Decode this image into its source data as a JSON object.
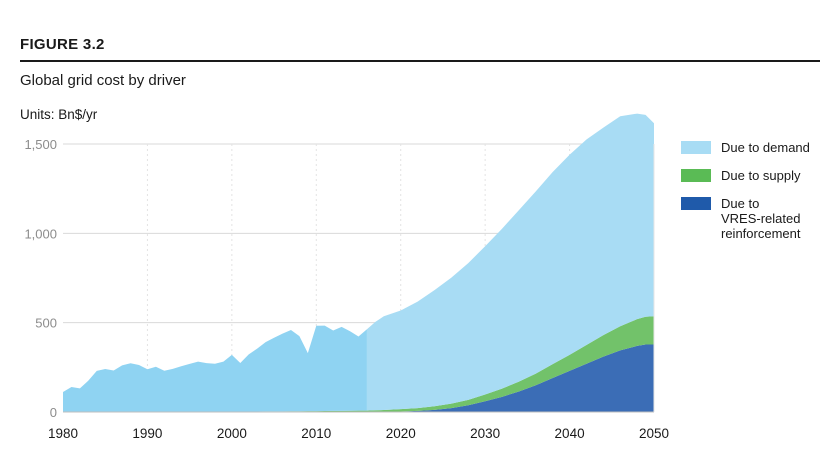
{
  "figure": {
    "label": "FIGURE 3.2",
    "title": "Global grid cost by driver",
    "units": "Units: Bn$/yr"
  },
  "colors": {
    "demand": "#a8dcf4",
    "demand_historic": "#8fd3f2",
    "supply": "#72c26a",
    "vres": "#3b6db6",
    "grid": "#d9d9d9",
    "axis_text": "#8c8c8c"
  },
  "legend": [
    {
      "name": "Due to demand",
      "color": "#a8dcf4"
    },
    {
      "name": "Due to supply",
      "color": "#5abb55"
    },
    {
      "name": "Due to\nVRES-related\nreinforcement",
      "color": "#1f5aaa"
    }
  ],
  "chart_data": {
    "type": "area",
    "stacked": true,
    "title": "Global grid cost by driver",
    "ylabel": "Units: Bn$/yr",
    "xlim": [
      1980,
      2050
    ],
    "ylim": [
      0,
      1500
    ],
    "x_ticks": [
      1980,
      1990,
      2000,
      2010,
      2020,
      2030,
      2040,
      2050
    ],
    "y_ticks": [
      0,
      500,
      1000,
      1500
    ],
    "y_tick_labels": [
      "0",
      "500",
      "1,000",
      "1,500"
    ],
    "grid": "horizontal",
    "legend_position": "right",
    "historic_end": 2016,
    "series": [
      {
        "name": "Due to VRES-related reinforcement",
        "points": [
          [
            1980,
            0
          ],
          [
            2016,
            0
          ],
          [
            2018,
            1
          ],
          [
            2020,
            3
          ],
          [
            2022,
            6
          ],
          [
            2024,
            12
          ],
          [
            2026,
            22
          ],
          [
            2028,
            38
          ],
          [
            2030,
            60
          ],
          [
            2032,
            85
          ],
          [
            2034,
            115
          ],
          [
            2036,
            150
          ],
          [
            2038,
            190
          ],
          [
            2040,
            230
          ],
          [
            2042,
            270
          ],
          [
            2044,
            310
          ],
          [
            2046,
            345
          ],
          [
            2048,
            370
          ],
          [
            2049,
            378
          ],
          [
            2050,
            378
          ]
        ]
      },
      {
        "name": "Due to supply",
        "points": [
          [
            1980,
            0
          ],
          [
            2000,
            2
          ],
          [
            2010,
            5
          ],
          [
            2016,
            8
          ],
          [
            2018,
            10
          ],
          [
            2020,
            13
          ],
          [
            2022,
            16
          ],
          [
            2024,
            20
          ],
          [
            2026,
            25
          ],
          [
            2028,
            30
          ],
          [
            2030,
            38
          ],
          [
            2032,
            46
          ],
          [
            2034,
            55
          ],
          [
            2036,
            65
          ],
          [
            2038,
            78
          ],
          [
            2040,
            90
          ],
          [
            2042,
            105
          ],
          [
            2044,
            120
          ],
          [
            2046,
            135
          ],
          [
            2048,
            150
          ],
          [
            2049,
            155
          ],
          [
            2050,
            158
          ]
        ]
      },
      {
        "name": "Due to demand",
        "points": [
          [
            1980,
            112
          ],
          [
            1981,
            140
          ],
          [
            1982,
            132
          ],
          [
            1983,
            175
          ],
          [
            1984,
            230
          ],
          [
            1985,
            240
          ],
          [
            1986,
            232
          ],
          [
            1987,
            260
          ],
          [
            1988,
            272
          ],
          [
            1989,
            262
          ],
          [
            1990,
            238
          ],
          [
            1991,
            252
          ],
          [
            1992,
            230
          ],
          [
            1993,
            240
          ],
          [
            1994,
            255
          ],
          [
            1995,
            268
          ],
          [
            1996,
            280
          ],
          [
            1997,
            272
          ],
          [
            1998,
            268
          ],
          [
            1999,
            280
          ],
          [
            2000,
            318
          ],
          [
            2001,
            272
          ],
          [
            2002,
            320
          ],
          [
            2003,
            352
          ],
          [
            2004,
            388
          ],
          [
            2005,
            412
          ],
          [
            2006,
            435
          ],
          [
            2007,
            455
          ],
          [
            2008,
            420
          ],
          [
            2009,
            325
          ],
          [
            2010,
            478
          ],
          [
            2011,
            478
          ],
          [
            2012,
            450
          ],
          [
            2013,
            470
          ],
          [
            2014,
            445
          ],
          [
            2015,
            415
          ],
          [
            2016,
            455
          ],
          [
            2017,
            495
          ],
          [
            2018,
            525
          ],
          [
            2020,
            552
          ],
          [
            2022,
            596
          ],
          [
            2024,
            650
          ],
          [
            2026,
            705
          ],
          [
            2028,
            765
          ],
          [
            2030,
            830
          ],
          [
            2032,
            895
          ],
          [
            2034,
            960
          ],
          [
            2036,
            1020
          ],
          [
            2038,
            1075
          ],
          [
            2040,
            1120
          ],
          [
            2042,
            1150
          ],
          [
            2044,
            1162
          ],
          [
            2046,
            1175
          ],
          [
            2048,
            1150
          ],
          [
            2049,
            1130
          ],
          [
            2050,
            1080
          ]
        ]
      }
    ]
  }
}
